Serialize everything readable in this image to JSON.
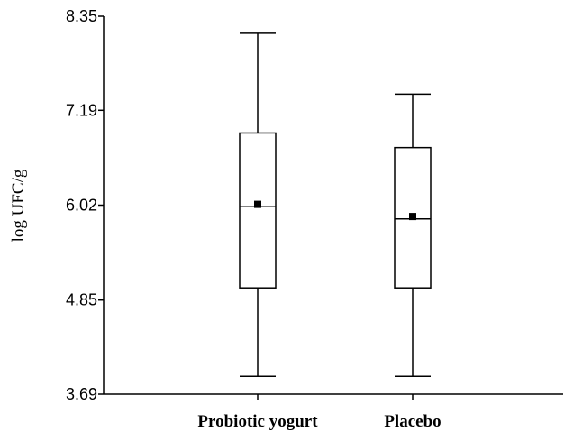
{
  "chart_data": {
    "type": "box",
    "title": "",
    "xlabel": "",
    "ylabel": "log UFC/g",
    "ylim": [
      3.69,
      8.35
    ],
    "yticks": [
      "3.69",
      "4.85",
      "6.02",
      "7.19",
      "8.35"
    ],
    "categories": [
      "Probiotic yogurt",
      "Placebo"
    ],
    "boxes": [
      {
        "category": "Probiotic yogurt",
        "min": 3.91,
        "q1": 5.0,
        "median": 6.0,
        "q3": 6.91,
        "max": 8.14,
        "mean": 6.03
      },
      {
        "category": "Placebo",
        "min": 3.91,
        "q1": 5.0,
        "median": 5.85,
        "q3": 6.73,
        "max": 7.39,
        "mean": 5.88
      }
    ],
    "grid": false,
    "legend": "none"
  }
}
